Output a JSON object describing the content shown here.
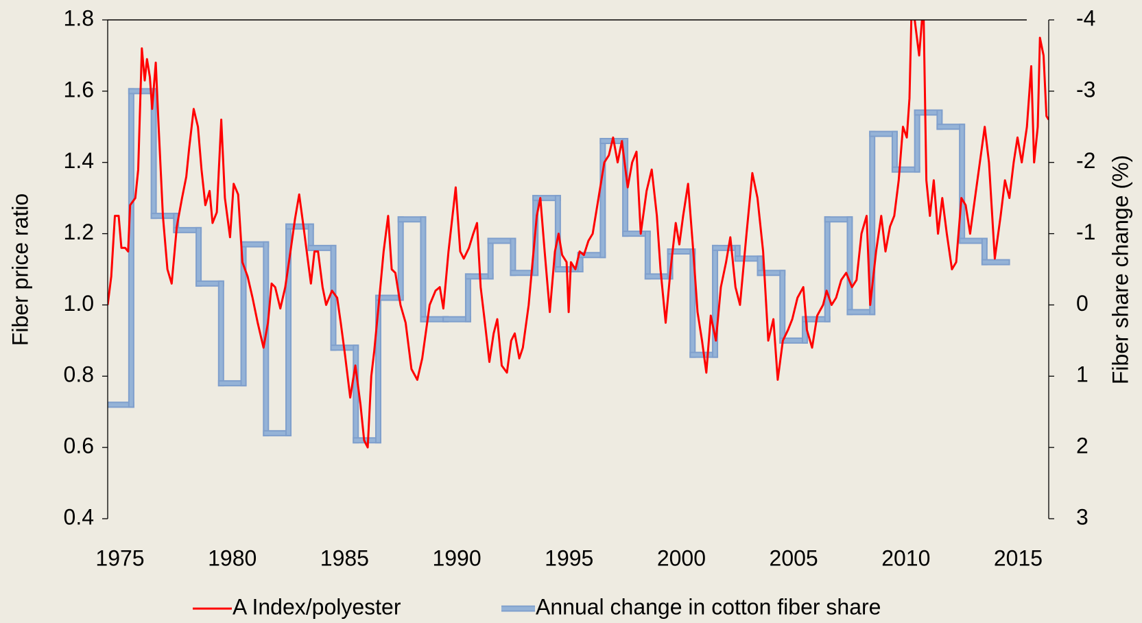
{
  "chart_data": {
    "type": "line",
    "ylabel": "Fiber price ratio",
    "y2label": "Fiber share change (%)",
    "xlim": [
      1974.45,
      2016.36
    ],
    "xticks": [
      1975,
      1980,
      1985,
      1990,
      1995,
      2000,
      2005,
      2010,
      2015
    ],
    "ylim": [
      0.4,
      1.8
    ],
    "yticks": [
      0.4,
      0.6,
      0.8,
      {
        "value": 1,
        "label": "1.0"
      },
      1.2,
      1.4,
      1.6,
      1.8
    ],
    "y2lim": [
      3,
      -4
    ],
    "y2ticks": [
      -4,
      -3,
      -2,
      -1,
      0,
      1,
      2,
      3
    ],
    "legend": "bottom",
    "series": [
      {
        "name": "A Index/polyester",
        "color": "#ff0000",
        "x": [
          1974.45,
          1974.61,
          1974.77,
          1974.94,
          1975.06,
          1975.23,
          1975.36,
          1975.45,
          1975.68,
          1975.81,
          1975.97,
          1976.1,
          1976.2,
          1976.33,
          1976.43,
          1976.59,
          1976.72,
          1976.91,
          1977.11,
          1977.3,
          1977.53,
          1977.76,
          1977.95,
          1978.08,
          1978.28,
          1978.47,
          1978.63,
          1978.8,
          1978.99,
          1979.12,
          1979.31,
          1979.51,
          1979.67,
          1979.9,
          1980.06,
          1980.26,
          1980.45,
          1980.68,
          1980.9,
          1981.13,
          1981.39,
          1981.59,
          1981.75,
          1981.91,
          1982.14,
          1982.36,
          1982.59,
          1982.79,
          1982.98,
          1983.17,
          1983.5,
          1983.66,
          1983.82,
          1984.02,
          1984.18,
          1984.44,
          1984.67,
          1984.83,
          1985.02,
          1985.25,
          1985.48,
          1985.71,
          1985.87,
          1986.03,
          1986.19,
          1986.32,
          1986.52,
          1986.74,
          1986.94,
          1987.1,
          1987.26,
          1987.49,
          1987.72,
          1987.98,
          1988.24,
          1988.46,
          1988.79,
          1989.05,
          1989.24,
          1989.4,
          1989.63,
          1989.95,
          1990.15,
          1990.31,
          1990.54,
          1990.73,
          1990.9,
          1991.06,
          1991.25,
          1991.45,
          1991.64,
          1991.8,
          1992.0,
          1992.23,
          1992.42,
          1992.58,
          1992.78,
          1992.94,
          1993.2,
          1993.56,
          1993.72,
          1993.91,
          1994.14,
          1994.37,
          1994.53,
          1994.69,
          1994.89,
          1994.98,
          1995.08,
          1995.28,
          1995.47,
          1995.66,
          1995.86,
          1996.05,
          1996.31,
          1996.57,
          1996.77,
          1996.96,
          1997.16,
          1997.35,
          1997.61,
          1997.81,
          1998.0,
          1998.19,
          1998.45,
          1998.68,
          1998.91,
          1999.07,
          1999.3,
          1999.52,
          1999.75,
          1999.91,
          2000.08,
          2000.3,
          2000.53,
          2000.72,
          2000.92,
          2001.11,
          2001.31,
          2001.54,
          2001.76,
          2001.99,
          2002.18,
          2002.41,
          2002.61,
          2002.9,
          2003.16,
          2003.39,
          2003.64,
          2003.87,
          2004.1,
          2004.29,
          2004.52,
          2004.75,
          2004.94,
          2005.17,
          2005.43,
          2005.59,
          2005.82,
          2006.05,
          2006.31,
          2006.47,
          2006.69,
          2006.89,
          2007.12,
          2007.34,
          2007.6,
          2007.8,
          2008.02,
          2008.25,
          2008.41,
          2008.67,
          2008.9,
          2009.09,
          2009.29,
          2009.48,
          2009.68,
          2009.87,
          2010.04,
          2010.16,
          2010.26,
          2010.39,
          2010.59,
          2010.78,
          2010.91,
          2011.07,
          2011.24,
          2011.43,
          2011.62,
          2011.82,
          2012.05,
          2012.24,
          2012.47,
          2012.66,
          2012.86,
          2013.12,
          2013.51,
          2013.7,
          2013.96,
          2014.22,
          2014.41,
          2014.61,
          2014.8,
          2014.97,
          2015.16,
          2015.39,
          2015.58,
          2015.71,
          2015.87,
          2015.97,
          2016.13,
          2016.26,
          2016.36
        ],
        "values": [
          1.0,
          1.08,
          1.25,
          1.25,
          1.16,
          1.16,
          1.15,
          1.28,
          1.3,
          1.38,
          1.72,
          1.63,
          1.69,
          1.64,
          1.55,
          1.68,
          1.5,
          1.25,
          1.1,
          1.06,
          1.22,
          1.3,
          1.36,
          1.44,
          1.55,
          1.5,
          1.38,
          1.28,
          1.32,
          1.23,
          1.26,
          1.52,
          1.3,
          1.19,
          1.34,
          1.31,
          1.12,
          1.08,
          1.02,
          0.95,
          0.88,
          0.95,
          1.06,
          1.05,
          0.99,
          1.05,
          1.15,
          1.24,
          1.31,
          1.22,
          1.06,
          1.15,
          1.15,
          1.05,
          1.0,
          1.04,
          1.02,
          0.95,
          0.86,
          0.74,
          0.83,
          0.72,
          0.62,
          0.6,
          0.8,
          0.87,
          1.0,
          1.15,
          1.25,
          1.1,
          1.09,
          1.0,
          0.95,
          0.82,
          0.79,
          0.85,
          1.0,
          1.04,
          1.05,
          0.99,
          1.15,
          1.33,
          1.15,
          1.13,
          1.16,
          1.2,
          1.23,
          1.05,
          0.95,
          0.84,
          0.92,
          0.96,
          0.83,
          0.81,
          0.9,
          0.92,
          0.85,
          0.88,
          1.0,
          1.25,
          1.3,
          1.15,
          0.98,
          1.15,
          1.2,
          1.14,
          1.12,
          0.98,
          1.12,
          1.1,
          1.15,
          1.14,
          1.18,
          1.2,
          1.3,
          1.4,
          1.42,
          1.47,
          1.4,
          1.46,
          1.33,
          1.4,
          1.43,
          1.2,
          1.32,
          1.38,
          1.25,
          1.1,
          0.95,
          1.1,
          1.23,
          1.17,
          1.25,
          1.34,
          1.15,
          0.98,
          0.9,
          0.81,
          0.97,
          0.9,
          1.05,
          1.12,
          1.19,
          1.05,
          1.0,
          1.2,
          1.37,
          1.3,
          1.15,
          0.9,
          0.96,
          0.79,
          0.9,
          0.93,
          0.96,
          1.02,
          1.05,
          0.93,
          0.88,
          0.97,
          1.0,
          1.04,
          1.0,
          1.02,
          1.07,
          1.09,
          1.05,
          1.07,
          1.2,
          1.25,
          1.0,
          1.15,
          1.25,
          1.15,
          1.22,
          1.25,
          1.35,
          1.5,
          1.47,
          1.58,
          1.85,
          1.8,
          1.7,
          1.85,
          1.35,
          1.25,
          1.35,
          1.2,
          1.3,
          1.2,
          1.1,
          1.12,
          1.3,
          1.28,
          1.2,
          1.32,
          1.5,
          1.4,
          1.13,
          1.25,
          1.35,
          1.3,
          1.4,
          1.47,
          1.4,
          1.5,
          1.67,
          1.4,
          1.5,
          1.75,
          1.7,
          1.53,
          1.52
        ]
      },
      {
        "name": "Annual change in cotton fiber share",
        "color": "#95b3d7",
        "axis": "y2",
        "drawstyle": "steps-mid",
        "x": [
          1975,
          1976,
          1977,
          1978,
          1979,
          1980,
          1981,
          1982,
          1983,
          1984,
          1985,
          1986,
          1987,
          1988,
          1989,
          1990,
          1991,
          1992,
          1993,
          1994,
          1995,
          1996,
          1997,
          1998,
          1999,
          2000,
          2001,
          2002,
          2003,
          2004,
          2005,
          2006,
          2007,
          2008,
          2009,
          2010,
          2011,
          2012,
          2013,
          2014
        ],
        "values": [
          1.4,
          -3.0,
          -1.25,
          -1.05,
          -0.3,
          1.1,
          -0.85,
          1.8,
          -1.1,
          -0.8,
          0.6,
          1.9,
          -0.1,
          -1.2,
          0.2,
          0.2,
          -0.4,
          -0.9,
          -0.45,
          -1.5,
          -0.5,
          -0.7,
          -2.3,
          -1.0,
          -0.4,
          -0.75,
          0.7,
          -0.8,
          -0.65,
          -0.45,
          0.5,
          0.2,
          -1.2,
          0.1,
          -2.4,
          -1.9,
          -2.7,
          -2.5,
          -0.9,
          -0.6
        ]
      }
    ]
  }
}
